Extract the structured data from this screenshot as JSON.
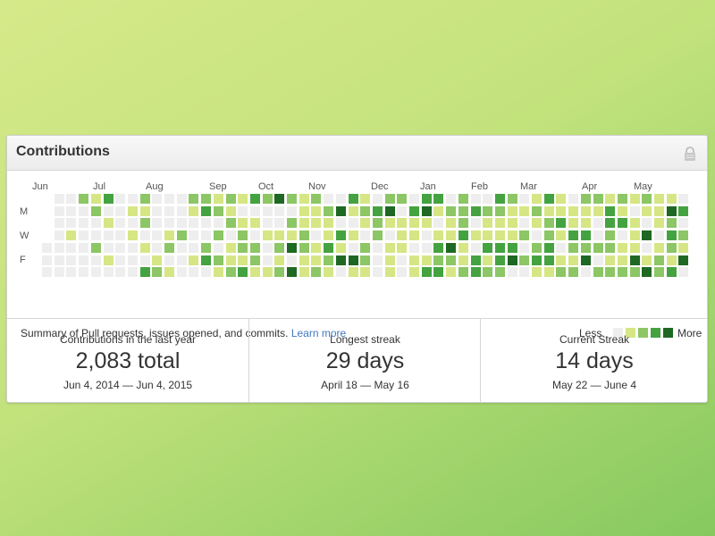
{
  "card": {
    "title": "Contributions"
  },
  "graph": {
    "months": [
      "Jun",
      "Jul",
      "Aug",
      "Sep",
      "Oct",
      "Nov",
      "Dec",
      "Jan",
      "Feb",
      "Mar",
      "Apr",
      "May"
    ],
    "days": [
      "M",
      "W",
      "F"
    ],
    "summary_text": "Summary of Pull requests, issues opened, and commits.",
    "learn_more": "Learn more",
    "legend_less": "Less",
    "legend_more": "More",
    "colors": [
      "#eeeeee",
      "#d6e685",
      "#8cc665",
      "#44a340",
      "#1e6823"
    ]
  },
  "stats": [
    {
      "label": "Contributions in the last year",
      "value": "2,083 total",
      "range": "Jun 4, 2014 — Jun 4, 2015"
    },
    {
      "label": "Longest streak",
      "value": "29 days",
      "range": "April 18 — May 16"
    },
    {
      "label": "Current Streak",
      "value": "14 days",
      "range": "May 22 — June 4"
    }
  ]
}
